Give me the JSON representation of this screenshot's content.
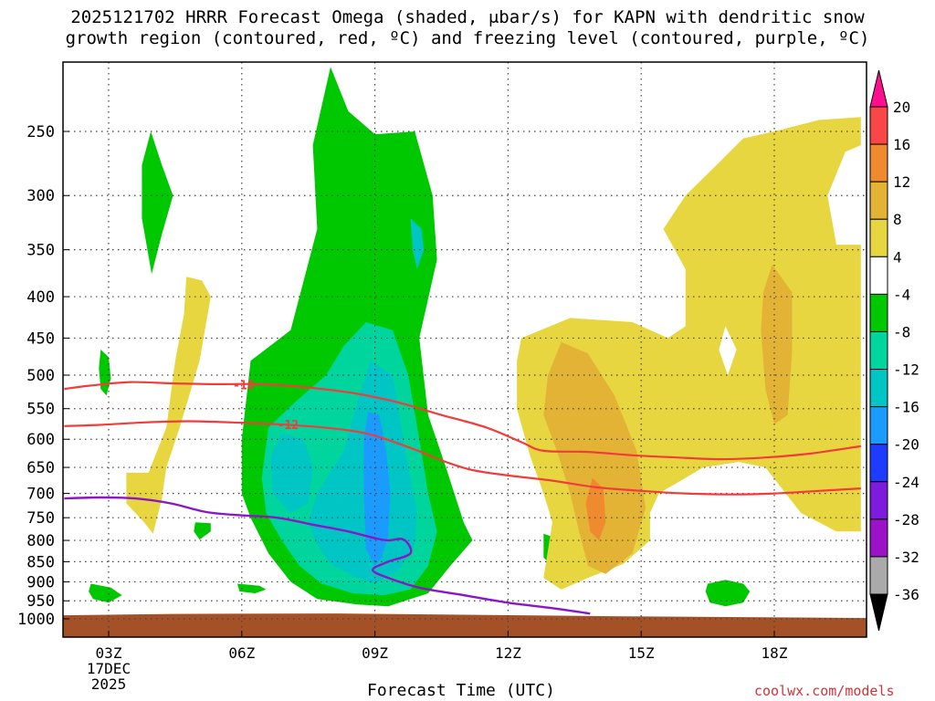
{
  "title_line1": "2025121702 HRRR Forecast Omega (shaded, μbar/s) for KAPN with dendritic snow",
  "title_line2": "growth region (contoured, red, ºC) and freezing level (contoured, purple, ºC)",
  "xlabel": "Forecast Time (UTC)",
  "credit": "coolwx.com/models",
  "date_label": {
    "day": "17DEC",
    "year": "2025"
  },
  "chart_data": {
    "type": "heatmap",
    "title": "2025121702 HRRR Forecast Omega (shaded, μbar/s) for KAPN with dendritic snow growth region (contoured, red, ºC) and freezing level (contoured, purple, ºC)",
    "xlabel": "Forecast Time (UTC)",
    "ylabel": "",
    "x_ticks": [
      3,
      6,
      9,
      12,
      15,
      18
    ],
    "x_tick_labels": [
      "03Z",
      "06Z",
      "09Z",
      "12Z",
      "15Z",
      "18Z"
    ],
    "xlim": [
      2,
      19.95
    ],
    "y_scale": "log",
    "y_ticks": [
      250,
      300,
      350,
      400,
      450,
      500,
      550,
      600,
      650,
      700,
      750,
      800,
      850,
      900,
      950,
      1000
    ],
    "ylim": [
      200,
      1050
    ],
    "colorbar": {
      "levels": [
        "20",
        "16",
        "12",
        "8",
        "4",
        "-4",
        "-8",
        "-12",
        "-16",
        "-20",
        "-24",
        "-28",
        "-32",
        "-36"
      ],
      "colors": [
        "#ff0f8f",
        "#f94747",
        "#ef8a2f",
        "#e3b336",
        "#e7d63f",
        "#ffffff",
        "#00c800",
        "#00d59d",
        "#00c5c5",
        "#1c9bff",
        "#1e3cff",
        "#7d1cdc",
        "#9b12c8",
        "#aaaaaa",
        "#000000"
      ]
    },
    "omega_regions": [
      {
        "name": "-4",
        "color": "#00c800",
        "points": [
          [
            8.0,
            208
          ],
          [
            8.4,
            236
          ],
          [
            9.0,
            252
          ],
          [
            9.9,
            250
          ],
          [
            10.3,
            300
          ],
          [
            10.4,
            360
          ],
          [
            10.0,
            450
          ],
          [
            10.2,
            560
          ],
          [
            10.6,
            650
          ],
          [
            11.0,
            760
          ],
          [
            11.2,
            800
          ],
          [
            10.7,
            860
          ],
          [
            10.2,
            930
          ],
          [
            9.3,
            965
          ],
          [
            8.6,
            960
          ],
          [
            7.7,
            945
          ],
          [
            7.1,
            900
          ],
          [
            6.6,
            830
          ],
          [
            6.2,
            750
          ],
          [
            6.0,
            700
          ],
          [
            6.0,
            600
          ],
          [
            6.2,
            480
          ],
          [
            7.1,
            440
          ],
          [
            7.3,
            400
          ],
          [
            7.7,
            330
          ],
          [
            7.6,
            260
          ]
        ]
      },
      {
        "name": "-4",
        "color": "#00c800",
        "points": [
          [
            3.95,
            250
          ],
          [
            4.2,
            275
          ],
          [
            4.45,
            300
          ],
          [
            4.2,
            335
          ],
          [
            3.97,
            375
          ],
          [
            3.75,
            320
          ],
          [
            3.75,
            275
          ]
        ]
      },
      {
        "name": "-4",
        "color": "#00c800",
        "points": [
          [
            2.82,
            465
          ],
          [
            3.0,
            475
          ],
          [
            3.05,
            505
          ],
          [
            2.95,
            530
          ],
          [
            2.82,
            520
          ],
          [
            2.78,
            490
          ]
        ]
      },
      {
        "name": "-4",
        "color": "#00c800",
        "points": [
          [
            2.6,
            905
          ],
          [
            3.05,
            915
          ],
          [
            3.3,
            935
          ],
          [
            3.0,
            955
          ],
          [
            2.65,
            945
          ],
          [
            2.55,
            925
          ]
        ]
      },
      {
        "name": "-4",
        "color": "#00c800",
        "points": [
          [
            4.95,
            760
          ],
          [
            5.3,
            762
          ],
          [
            5.3,
            780
          ],
          [
            5.05,
            798
          ],
          [
            4.92,
            780
          ]
        ]
      },
      {
        "name": "-4",
        "color": "#00c800",
        "points": [
          [
            5.9,
            905
          ],
          [
            6.4,
            910
          ],
          [
            6.55,
            920
          ],
          [
            6.3,
            930
          ],
          [
            5.95,
            925
          ]
        ]
      },
      {
        "name": "-4",
        "color": "#00c800",
        "points": [
          [
            12.8,
            785
          ],
          [
            12.95,
            790
          ],
          [
            13.0,
            830
          ],
          [
            12.9,
            850
          ],
          [
            12.8,
            840
          ]
        ]
      },
      {
        "name": "-4",
        "color": "#00c800",
        "points": [
          [
            16.5,
            905
          ],
          [
            16.9,
            895
          ],
          [
            17.3,
            905
          ],
          [
            17.45,
            925
          ],
          [
            17.3,
            955
          ],
          [
            16.9,
            965
          ],
          [
            16.55,
            955
          ],
          [
            16.45,
            925
          ]
        ]
      },
      {
        "name": "-8",
        "color": "#00d59d",
        "points": [
          [
            8.8,
            430
          ],
          [
            9.4,
            440
          ],
          [
            9.75,
            500
          ],
          [
            10.0,
            600
          ],
          [
            10.2,
            700
          ],
          [
            10.4,
            780
          ],
          [
            10.2,
            860
          ],
          [
            9.8,
            920
          ],
          [
            9.2,
            935
          ],
          [
            8.5,
            930
          ],
          [
            7.8,
            905
          ],
          [
            7.3,
            860
          ],
          [
            6.9,
            800
          ],
          [
            6.55,
            740
          ],
          [
            6.45,
            670
          ],
          [
            6.6,
            580
          ],
          [
            7.2,
            540
          ],
          [
            7.9,
            500
          ],
          [
            8.3,
            460
          ]
        ]
      },
      {
        "name": "-12",
        "color": "#00c5c5",
        "points": [
          [
            8.9,
            480
          ],
          [
            9.4,
            500
          ],
          [
            9.55,
            560
          ],
          [
            9.75,
            650
          ],
          [
            9.95,
            740
          ],
          [
            9.9,
            810
          ],
          [
            9.55,
            870
          ],
          [
            9.0,
            905
          ],
          [
            8.5,
            885
          ],
          [
            8.0,
            855
          ],
          [
            7.7,
            810
          ],
          [
            7.5,
            760
          ],
          [
            7.7,
            700
          ],
          [
            8.3,
            620
          ],
          [
            8.6,
            540
          ]
        ]
      },
      {
        "name": "-12",
        "color": "#00c5c5",
        "points": [
          [
            6.9,
            590
          ],
          [
            7.4,
            600
          ],
          [
            7.6,
            650
          ],
          [
            7.5,
            720
          ],
          [
            7.1,
            740
          ],
          [
            6.7,
            700
          ],
          [
            6.65,
            630
          ]
        ]
      },
      {
        "name": "-12",
        "color": "#00c5c5",
        "points": [
          [
            9.8,
            320
          ],
          [
            10.05,
            330
          ],
          [
            10.1,
            350
          ],
          [
            9.95,
            370
          ],
          [
            9.85,
            350
          ]
        ]
      },
      {
        "name": "-16",
        "color": "#1c9bff",
        "points": [
          [
            8.85,
            555
          ],
          [
            9.1,
            560
          ],
          [
            9.25,
            620
          ],
          [
            9.35,
            700
          ],
          [
            9.3,
            790
          ],
          [
            9.15,
            840
          ],
          [
            9.0,
            860
          ],
          [
            8.8,
            820
          ],
          [
            8.75,
            700
          ],
          [
            8.75,
            600
          ]
        ]
      },
      {
        "name": "4",
        "color": "#e7d63f",
        "points": [
          [
            12.3,
            450
          ],
          [
            13.4,
            425
          ],
          [
            14.8,
            430
          ],
          [
            15.6,
            450
          ],
          [
            16.0,
            435
          ],
          [
            16.0,
            370
          ],
          [
            15.5,
            330
          ],
          [
            16.0,
            300
          ],
          [
            16.7,
            275
          ],
          [
            17.3,
            255
          ],
          [
            18.0,
            250
          ],
          [
            19.0,
            242
          ],
          [
            19.95,
            240
          ],
          [
            19.95,
            260
          ],
          [
            19.6,
            265
          ],
          [
            19.2,
            300
          ],
          [
            19.4,
            345
          ],
          [
            19.95,
            345
          ],
          [
            19.95,
            780
          ],
          [
            19.4,
            780
          ],
          [
            18.6,
            740
          ],
          [
            17.8,
            650
          ],
          [
            17.2,
            640
          ],
          [
            16.4,
            650
          ],
          [
            15.4,
            700
          ],
          [
            15.2,
            740
          ],
          [
            15.2,
            800
          ],
          [
            14.6,
            855
          ],
          [
            13.8,
            890
          ],
          [
            13.2,
            920
          ],
          [
            12.8,
            890
          ],
          [
            13.0,
            760
          ],
          [
            12.8,
            700
          ],
          [
            12.5,
            630
          ],
          [
            12.2,
            550
          ],
          [
            12.2,
            480
          ]
        ]
      },
      {
        "name": "4",
        "color": "#e7d63f",
        "points": [
          [
            4.75,
            378
          ],
          [
            5.1,
            382
          ],
          [
            5.3,
            400
          ],
          [
            5.05,
            480
          ],
          [
            4.6,
            580
          ],
          [
            4.3,
            650
          ],
          [
            4.2,
            710
          ],
          [
            4.0,
            785
          ],
          [
            3.8,
            760
          ],
          [
            3.4,
            720
          ],
          [
            3.4,
            660
          ],
          [
            3.9,
            660
          ],
          [
            4.3,
            580
          ],
          [
            4.5,
            480
          ],
          [
            4.7,
            420
          ]
        ]
      },
      {
        "name": "8",
        "color": "#e3b336",
        "points": [
          [
            13.2,
            455
          ],
          [
            13.8,
            470
          ],
          [
            14.4,
            530
          ],
          [
            14.9,
            620
          ],
          [
            15.1,
            730
          ],
          [
            14.8,
            830
          ],
          [
            14.2,
            880
          ],
          [
            13.8,
            860
          ],
          [
            13.6,
            780
          ],
          [
            13.4,
            700
          ],
          [
            13.1,
            620
          ],
          [
            12.8,
            560
          ],
          [
            12.9,
            500
          ]
        ]
      },
      {
        "name": "8",
        "color": "#e3b336",
        "points": [
          [
            17.95,
            365
          ],
          [
            18.4,
            395
          ],
          [
            18.4,
            470
          ],
          [
            18.3,
            560
          ],
          [
            18.0,
            575
          ],
          [
            17.8,
            520
          ],
          [
            17.7,
            440
          ],
          [
            17.75,
            395
          ]
        ]
      },
      {
        "name": "12",
        "color": "#ef8a2f",
        "points": [
          [
            13.9,
            670
          ],
          [
            14.15,
            690
          ],
          [
            14.2,
            760
          ],
          [
            14.05,
            800
          ],
          [
            13.85,
            780
          ],
          [
            13.75,
            720
          ]
        ]
      }
    ],
    "white_holes": [
      {
        "name": "4-hole",
        "points": [
          [
            16.9,
            435
          ],
          [
            17.15,
            465
          ],
          [
            16.95,
            500
          ],
          [
            16.75,
            465
          ]
        ]
      }
    ],
    "dgz_contours": [
      {
        "name": "-18",
        "label": "-18",
        "label_at": [
          6.0,
          514
        ],
        "points": [
          [
            2.0,
            520
          ],
          [
            2.6,
            515
          ],
          [
            3.5,
            510
          ],
          [
            4.5,
            512
          ],
          [
            5.5,
            513
          ],
          [
            6.5,
            513
          ],
          [
            7.5,
            518
          ],
          [
            8.5,
            526
          ],
          [
            9.5,
            540
          ],
          [
            10.5,
            560
          ],
          [
            11.5,
            580
          ],
          [
            12.3,
            605
          ],
          [
            12.8,
            620
          ],
          [
            13.8,
            622
          ],
          [
            14.8,
            628
          ],
          [
            15.8,
            632
          ],
          [
            16.8,
            635
          ],
          [
            17.8,
            632
          ],
          [
            18.8,
            625
          ],
          [
            19.95,
            612
          ]
        ]
      },
      {
        "name": "-12",
        "label": "-12",
        "label_at": [
          7.0,
          575
        ],
        "points": [
          [
            2.0,
            578
          ],
          [
            2.8,
            576
          ],
          [
            3.8,
            572
          ],
          [
            4.8,
            570
          ],
          [
            5.8,
            572
          ],
          [
            6.8,
            575
          ],
          [
            7.8,
            580
          ],
          [
            8.8,
            590
          ],
          [
            9.8,
            615
          ],
          [
            10.6,
            640
          ],
          [
            11.2,
            655
          ],
          [
            12.0,
            665
          ],
          [
            13.0,
            675
          ],
          [
            14.0,
            688
          ],
          [
            15.0,
            695
          ],
          [
            16.0,
            700
          ],
          [
            17.0,
            702
          ],
          [
            18.0,
            700
          ],
          [
            19.0,
            695
          ],
          [
            19.95,
            690
          ]
        ]
      }
    ],
    "freezing_level": {
      "name": "0",
      "points": [
        [
          2.0,
          710
        ],
        [
          2.8,
          708
        ],
        [
          3.6,
          710
        ],
        [
          4.4,
          720
        ],
        [
          5.2,
          738
        ],
        [
          6.0,
          745
        ],
        [
          6.8,
          750
        ],
        [
          7.6,
          765
        ],
        [
          8.4,
          780
        ],
        [
          9.0,
          795
        ],
        [
          9.3,
          800
        ],
        [
          9.65,
          798
        ],
        [
          9.8,
          830
        ],
        [
          9.3,
          850
        ],
        [
          8.95,
          870
        ],
        [
          9.3,
          890
        ],
        [
          10.0,
          915
        ],
        [
          11.0,
          935
        ],
        [
          12.0,
          955
        ],
        [
          13.0,
          970
        ],
        [
          13.85,
          985
        ]
      ]
    },
    "ground": {
      "color": "#a55128",
      "top_pressure": 990
    }
  }
}
